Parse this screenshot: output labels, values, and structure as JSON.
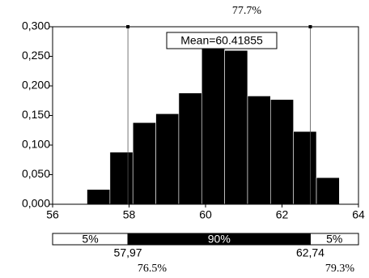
{
  "chart_data": {
    "type": "histogram",
    "bins": [
      56.9,
      57.5,
      58.1,
      58.7,
      59.3,
      59.9,
      60.5,
      61.1,
      61.7,
      62.3,
      62.9,
      63.5
    ],
    "values": [
      0.025,
      0.088,
      0.138,
      0.153,
      0.188,
      0.265,
      0.26,
      0.183,
      0.177,
      0.123,
      0.045
    ],
    "color": "#000000",
    "xlim": [
      56,
      64
    ],
    "xticks": [
      56,
      58,
      60,
      62,
      64
    ],
    "ylim": [
      0,
      0.3
    ],
    "yticks": [
      {
        "value": 0,
        "label": "0,000"
      },
      {
        "value": 0.05,
        "label": "0,050"
      },
      {
        "value": 0.1,
        "label": "0,100"
      },
      {
        "value": 0.15,
        "label": "0,150"
      },
      {
        "value": 0.2,
        "label": "0,200"
      },
      {
        "value": 0.25,
        "label": "0,250"
      },
      {
        "value": 0.3,
        "label": "0,300"
      }
    ],
    "mean_label": "Mean=60.41855",
    "delimiters": [
      {
        "value": 57.97,
        "label": "57,97"
      },
      {
        "value": 62.74,
        "label": "62,74"
      }
    ],
    "band_labels": [
      "5%",
      "90%",
      "5%"
    ],
    "annotations": [
      "77.7%",
      "76.5%",
      "79.3%"
    ]
  }
}
